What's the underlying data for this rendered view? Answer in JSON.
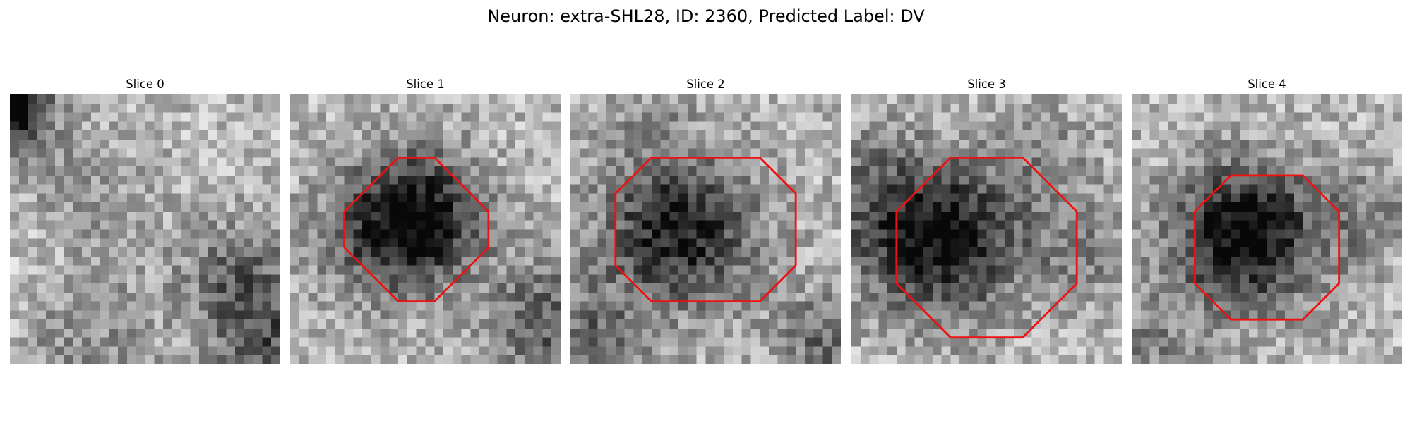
{
  "figure": {
    "title": "Neuron: extra-SHL28, ID: 2360, Predicted Label: DV",
    "contour_color": "#ee1111"
  },
  "panels": [
    {
      "title": "Slice 0",
      "dark_blobs": [
        [
          0.9,
          0.8,
          2.5,
          0.55
        ],
        [
          0.5,
          3.5,
          3.5,
          0.22
        ],
        [
          7.5,
          14.0,
          6.0,
          0.15
        ],
        [
          26.0,
          20.0,
          5.0,
          0.22
        ],
        [
          24.5,
          21.0,
          3.0,
          0.1
        ],
        [
          3.5,
          18.0,
          5.0,
          -0.12
        ],
        [
          8.0,
          27.0,
          5.0,
          0.18
        ],
        [
          28.5,
          28.0,
          4.5,
          0.35
        ]
      ],
      "contour": null
    },
    {
      "title": "Slice 1",
      "dark_blobs": [
        [
          13.5,
          13.0,
          5.0,
          0.6
        ],
        [
          13.0,
          16.5,
          5.0,
          0.22
        ],
        [
          6.0,
          18.0,
          5.0,
          0.1
        ],
        [
          28.0,
          24.0,
          5.0,
          0.25
        ],
        [
          30.0,
          28.0,
          4.0,
          0.15
        ]
      ],
      "contour": {
        "center": [
          14.0,
          15.0
        ],
        "extents": [
          [
            -2.0,
            2.0,
            -8.0,
            8.0
          ],
          [
            -4.0,
            4.0,
            -6.0,
            6.0
          ],
          [
            -6.0,
            6.0,
            -4.0,
            4.0
          ],
          [
            -8.0,
            8.0,
            -2.0,
            2.0
          ]
        ]
      }
    },
    {
      "title": "Slice 2",
      "dark_blobs": [
        [
          12.0,
          15.0,
          6.0,
          0.62
        ],
        [
          2.0,
          27.0,
          4.0,
          0.3
        ],
        [
          28.5,
          27.5,
          4.0,
          0.3
        ],
        [
          8.0,
          1.0,
          4.0,
          0.1
        ]
      ],
      "contour": {
        "center": [
          15.0,
          15.0
        ],
        "extents": [
          [
            -10.0,
            10.0,
            -4.0,
            4.0
          ],
          [
            -8.0,
            8.0,
            -6.0,
            6.0
          ],
          [
            -6.0,
            6.0,
            -8.0,
            8.0
          ]
        ]
      }
    },
    {
      "title": "Slice 3",
      "dark_blobs": [
        [
          11.0,
          16.0,
          6.0,
          0.6
        ],
        [
          4.0,
          15.0,
          5.0,
          0.25
        ],
        [
          22.5,
          7.0,
          4.0,
          0.15
        ],
        [
          26.0,
          17.5,
          4.0,
          0.2
        ],
        [
          2.0,
          8.0,
          4.0,
          0.12
        ]
      ],
      "contour": {
        "center": [
          15.0,
          17.0
        ],
        "extents": [
          [
            -4.0,
            4.0,
            -10.0,
            10.0
          ],
          [
            -6.0,
            6.0,
            -8.0,
            8.0
          ],
          [
            -8.0,
            8.0,
            -6.0,
            6.0
          ],
          [
            -10.0,
            10.0,
            -4.0,
            4.0
          ]
        ]
      }
    },
    {
      "title": "Slice 4",
      "dark_blobs": [
        [
          13.5,
          15.5,
          5.5,
          0.62
        ],
        [
          9.0,
          16.0,
          5.0,
          0.18
        ],
        [
          2.0,
          28.0,
          4.0,
          0.2
        ],
        [
          26.0,
          13.5,
          3.5,
          0.2
        ]
      ],
      "contour": {
        "center": [
          15.0,
          17.0
        ],
        "extents": [
          [
            -4.0,
            4.0,
            -8.0,
            8.0
          ],
          [
            -6.0,
            6.0,
            -6.0,
            6.0
          ],
          [
            -8.0,
            8.0,
            -4.0,
            4.0
          ]
        ]
      }
    }
  ]
}
